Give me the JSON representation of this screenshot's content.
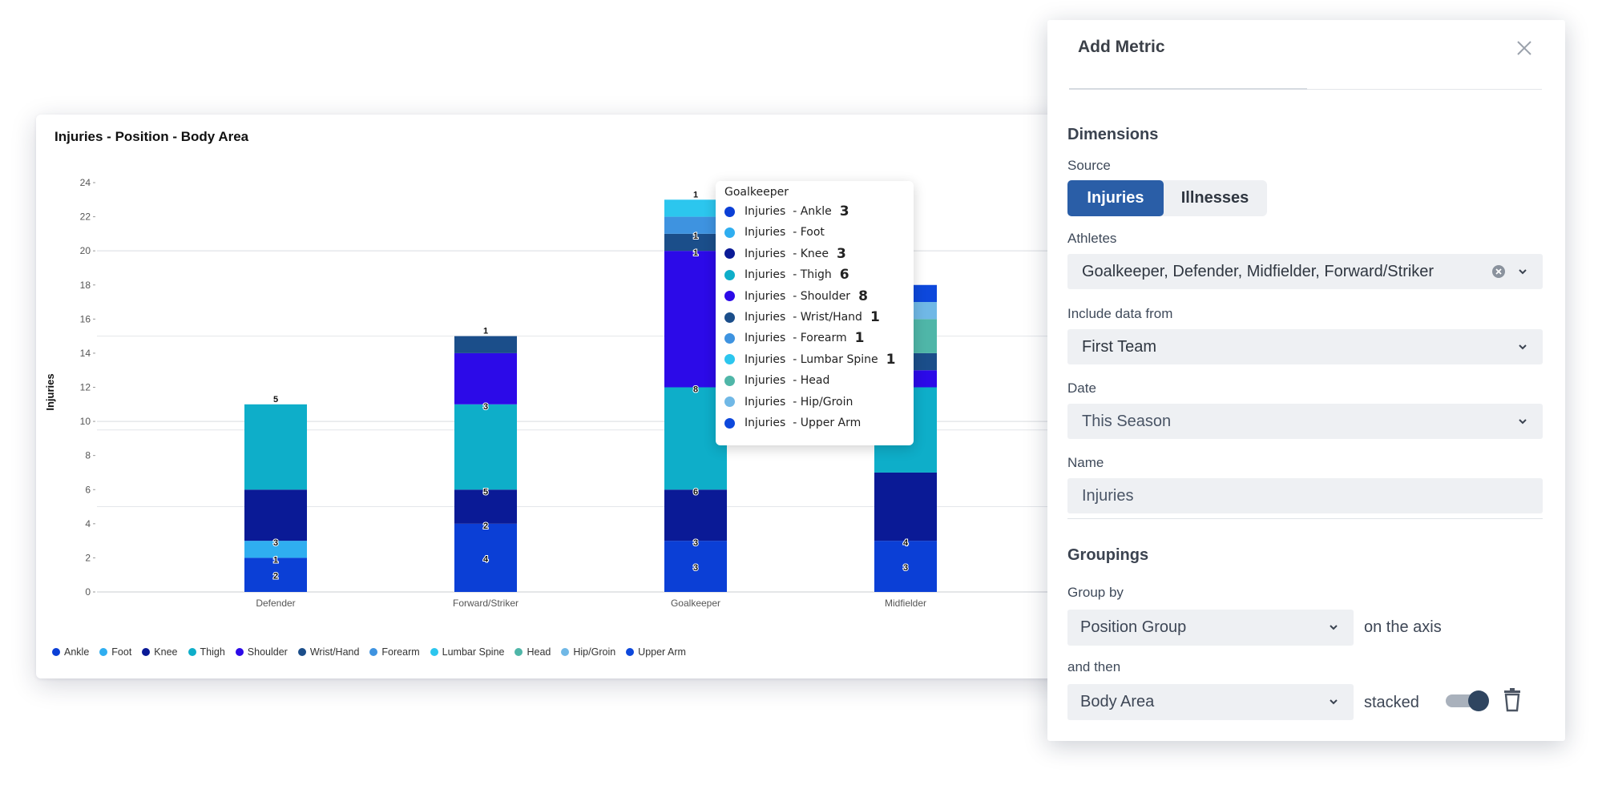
{
  "chart": {
    "title": "Injuries - Position - Body Area"
  },
  "chart_data": {
    "type": "bar",
    "stacked": true,
    "title": "Injuries - Position - Body Area",
    "xlabel": "",
    "ylabel": "Injuries",
    "ylim": [
      0,
      24
    ],
    "yticks": [
      "0",
      "2",
      "4",
      "6",
      "8",
      "10",
      "12",
      "14",
      "16",
      "18",
      "20",
      "22",
      "24"
    ],
    "categories": [
      "Defender",
      "Forward/Striker",
      "Goalkeeper",
      "Midfielder"
    ],
    "series": [
      {
        "name": "Ankle",
        "color": "#0b3fd6",
        "values": [
          2,
          4,
          3,
          3
        ]
      },
      {
        "name": "Foot",
        "color": "#2faef0",
        "values": [
          1,
          0,
          0,
          0
        ]
      },
      {
        "name": "Knee",
        "color": "#0a1a96",
        "values": [
          3,
          2,
          3,
          4
        ]
      },
      {
        "name": "Thigh",
        "color": "#0eaec9",
        "values": [
          5,
          5,
          6,
          5
        ]
      },
      {
        "name": "Shoulder",
        "color": "#2c0ae8",
        "values": [
          0,
          3,
          8,
          1
        ]
      },
      {
        "name": "Wrist/Hand",
        "color": "#1b4e8a",
        "values": [
          0,
          1,
          1,
          1
        ]
      },
      {
        "name": "Forearm",
        "color": "#3e93e0",
        "values": [
          0,
          0,
          1,
          0
        ]
      },
      {
        "name": "Lumbar Spine",
        "color": "#2cc6ee",
        "values": [
          0,
          0,
          1,
          0
        ]
      },
      {
        "name": "Head",
        "color": "#4fb6a8",
        "values": [
          0,
          0,
          0,
          2
        ]
      },
      {
        "name": "Hip/Groin",
        "color": "#70b8e6",
        "values": [
          0,
          0,
          0,
          1
        ]
      },
      {
        "name": "Upper Arm",
        "color": "#0d48dc",
        "values": [
          0,
          0,
          0,
          1
        ]
      }
    ],
    "bar_labels": [
      {
        "category": "Defender",
        "labels": [
          "2",
          "1",
          "3",
          "5"
        ]
      },
      {
        "category": "Forward/Striker",
        "labels": [
          "4",
          "2",
          "5",
          "3",
          "1"
        ]
      },
      {
        "category": "Goalkeeper",
        "labels": [
          "3",
          "3",
          "6",
          "8",
          "1",
          "1",
          "1"
        ]
      },
      {
        "category": "Midfielder",
        "labels": [
          "3",
          "4"
        ]
      }
    ],
    "grid": true,
    "legend": "bottom-left"
  },
  "tooltip": {
    "title": "Goalkeeper",
    "rows": [
      {
        "label": "Injuries  - Ankle",
        "value": "3",
        "color": "#0b3fd6"
      },
      {
        "label": "Injuries  - Foot",
        "value": "",
        "color": "#2faef0"
      },
      {
        "label": "Injuries  - Knee",
        "value": "3",
        "color": "#0a1a96"
      },
      {
        "label": "Injuries  - Thigh",
        "value": "6",
        "color": "#0eaec9"
      },
      {
        "label": "Injuries  - Shoulder",
        "value": "8",
        "color": "#2c0ae8"
      },
      {
        "label": "Injuries  - Wrist/Hand",
        "value": "1",
        "color": "#1b4e8a"
      },
      {
        "label": "Injuries  - Forearm",
        "value": "1",
        "color": "#3e93e0"
      },
      {
        "label": "Injuries  - Lumbar Spine",
        "value": "1",
        "color": "#2cc6ee"
      },
      {
        "label": "Injuries  - Head",
        "value": "",
        "color": "#4fb6a8"
      },
      {
        "label": "Injuries  - Hip/Groin",
        "value": "",
        "color": "#70b8e6"
      },
      {
        "label": "Injuries  - Upper Arm",
        "value": "",
        "color": "#0d48dc"
      }
    ]
  },
  "panel": {
    "title": "Add Metric",
    "close_icon": "close-icon",
    "dimensions_heading": "Dimensions",
    "source_label": "Source",
    "source_options": [
      "Injuries",
      "Illnesses"
    ],
    "source_selected": "Injuries",
    "athletes_label": "Athletes",
    "athletes_value": "Goalkeeper, Defender, Midfielder, Forward/Striker",
    "include_label": "Include data from",
    "include_value": "First Team",
    "date_label": "Date",
    "date_value": "This Season",
    "name_label": "Name",
    "name_value": "Injuries",
    "groupings_heading": "Groupings",
    "group_by_label": "Group by",
    "group_by_value": "Position Group",
    "group_by_suffix": "on the axis",
    "and_then_label": "and then",
    "and_then_value": "Body Area",
    "stacked_label": "stacked",
    "stacked_on": true
  }
}
